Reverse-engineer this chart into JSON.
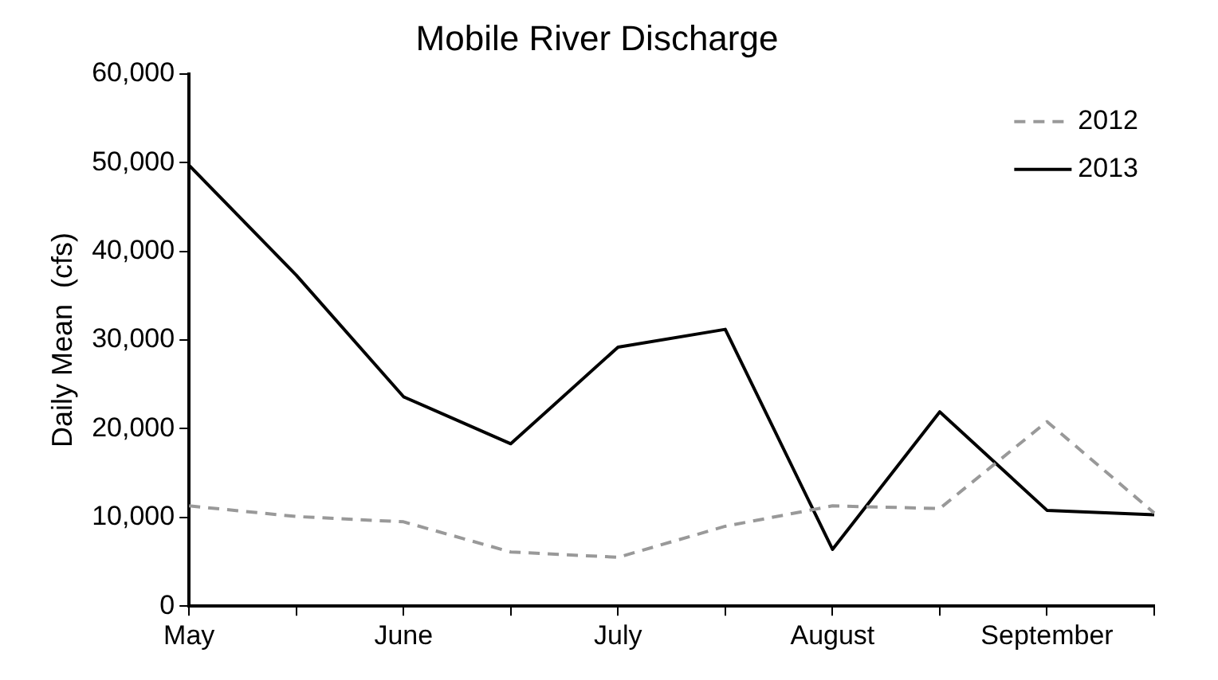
{
  "chart_data": {
    "type": "line",
    "title": "Mobile River Discharge",
    "ylabel": "Daily Mean  (cfs)",
    "categories": [
      "May",
      null,
      "June",
      null,
      "July",
      null,
      "August",
      null,
      "September",
      null
    ],
    "series": [
      {
        "name": "2012",
        "color": "#999999",
        "line_style": "dashed",
        "values": [
          11300,
          10100,
          9500,
          6100,
          5500,
          9000,
          11300,
          11000,
          20800,
          10500
        ]
      },
      {
        "name": "2013",
        "color": "#000000",
        "line_style": "solid",
        "values": [
          49700,
          37300,
          23600,
          18300,
          29200,
          31200,
          6400,
          21900,
          10800,
          10300
        ]
      }
    ],
    "ylim": [
      0,
      60000
    ],
    "yticks": [
      0,
      {
        "value": 10000,
        "label": "10,000"
      },
      {
        "value": 20000,
        "label": "20,000"
      },
      {
        "value": 30000,
        "label": "30,000"
      },
      {
        "value": 40000,
        "label": "40,000"
      },
      {
        "value": 50000,
        "label": "50,000"
      },
      {
        "value": 60000,
        "label": "60,000"
      }
    ],
    "grid": false,
    "legend": "top right",
    "marker": "none"
  }
}
